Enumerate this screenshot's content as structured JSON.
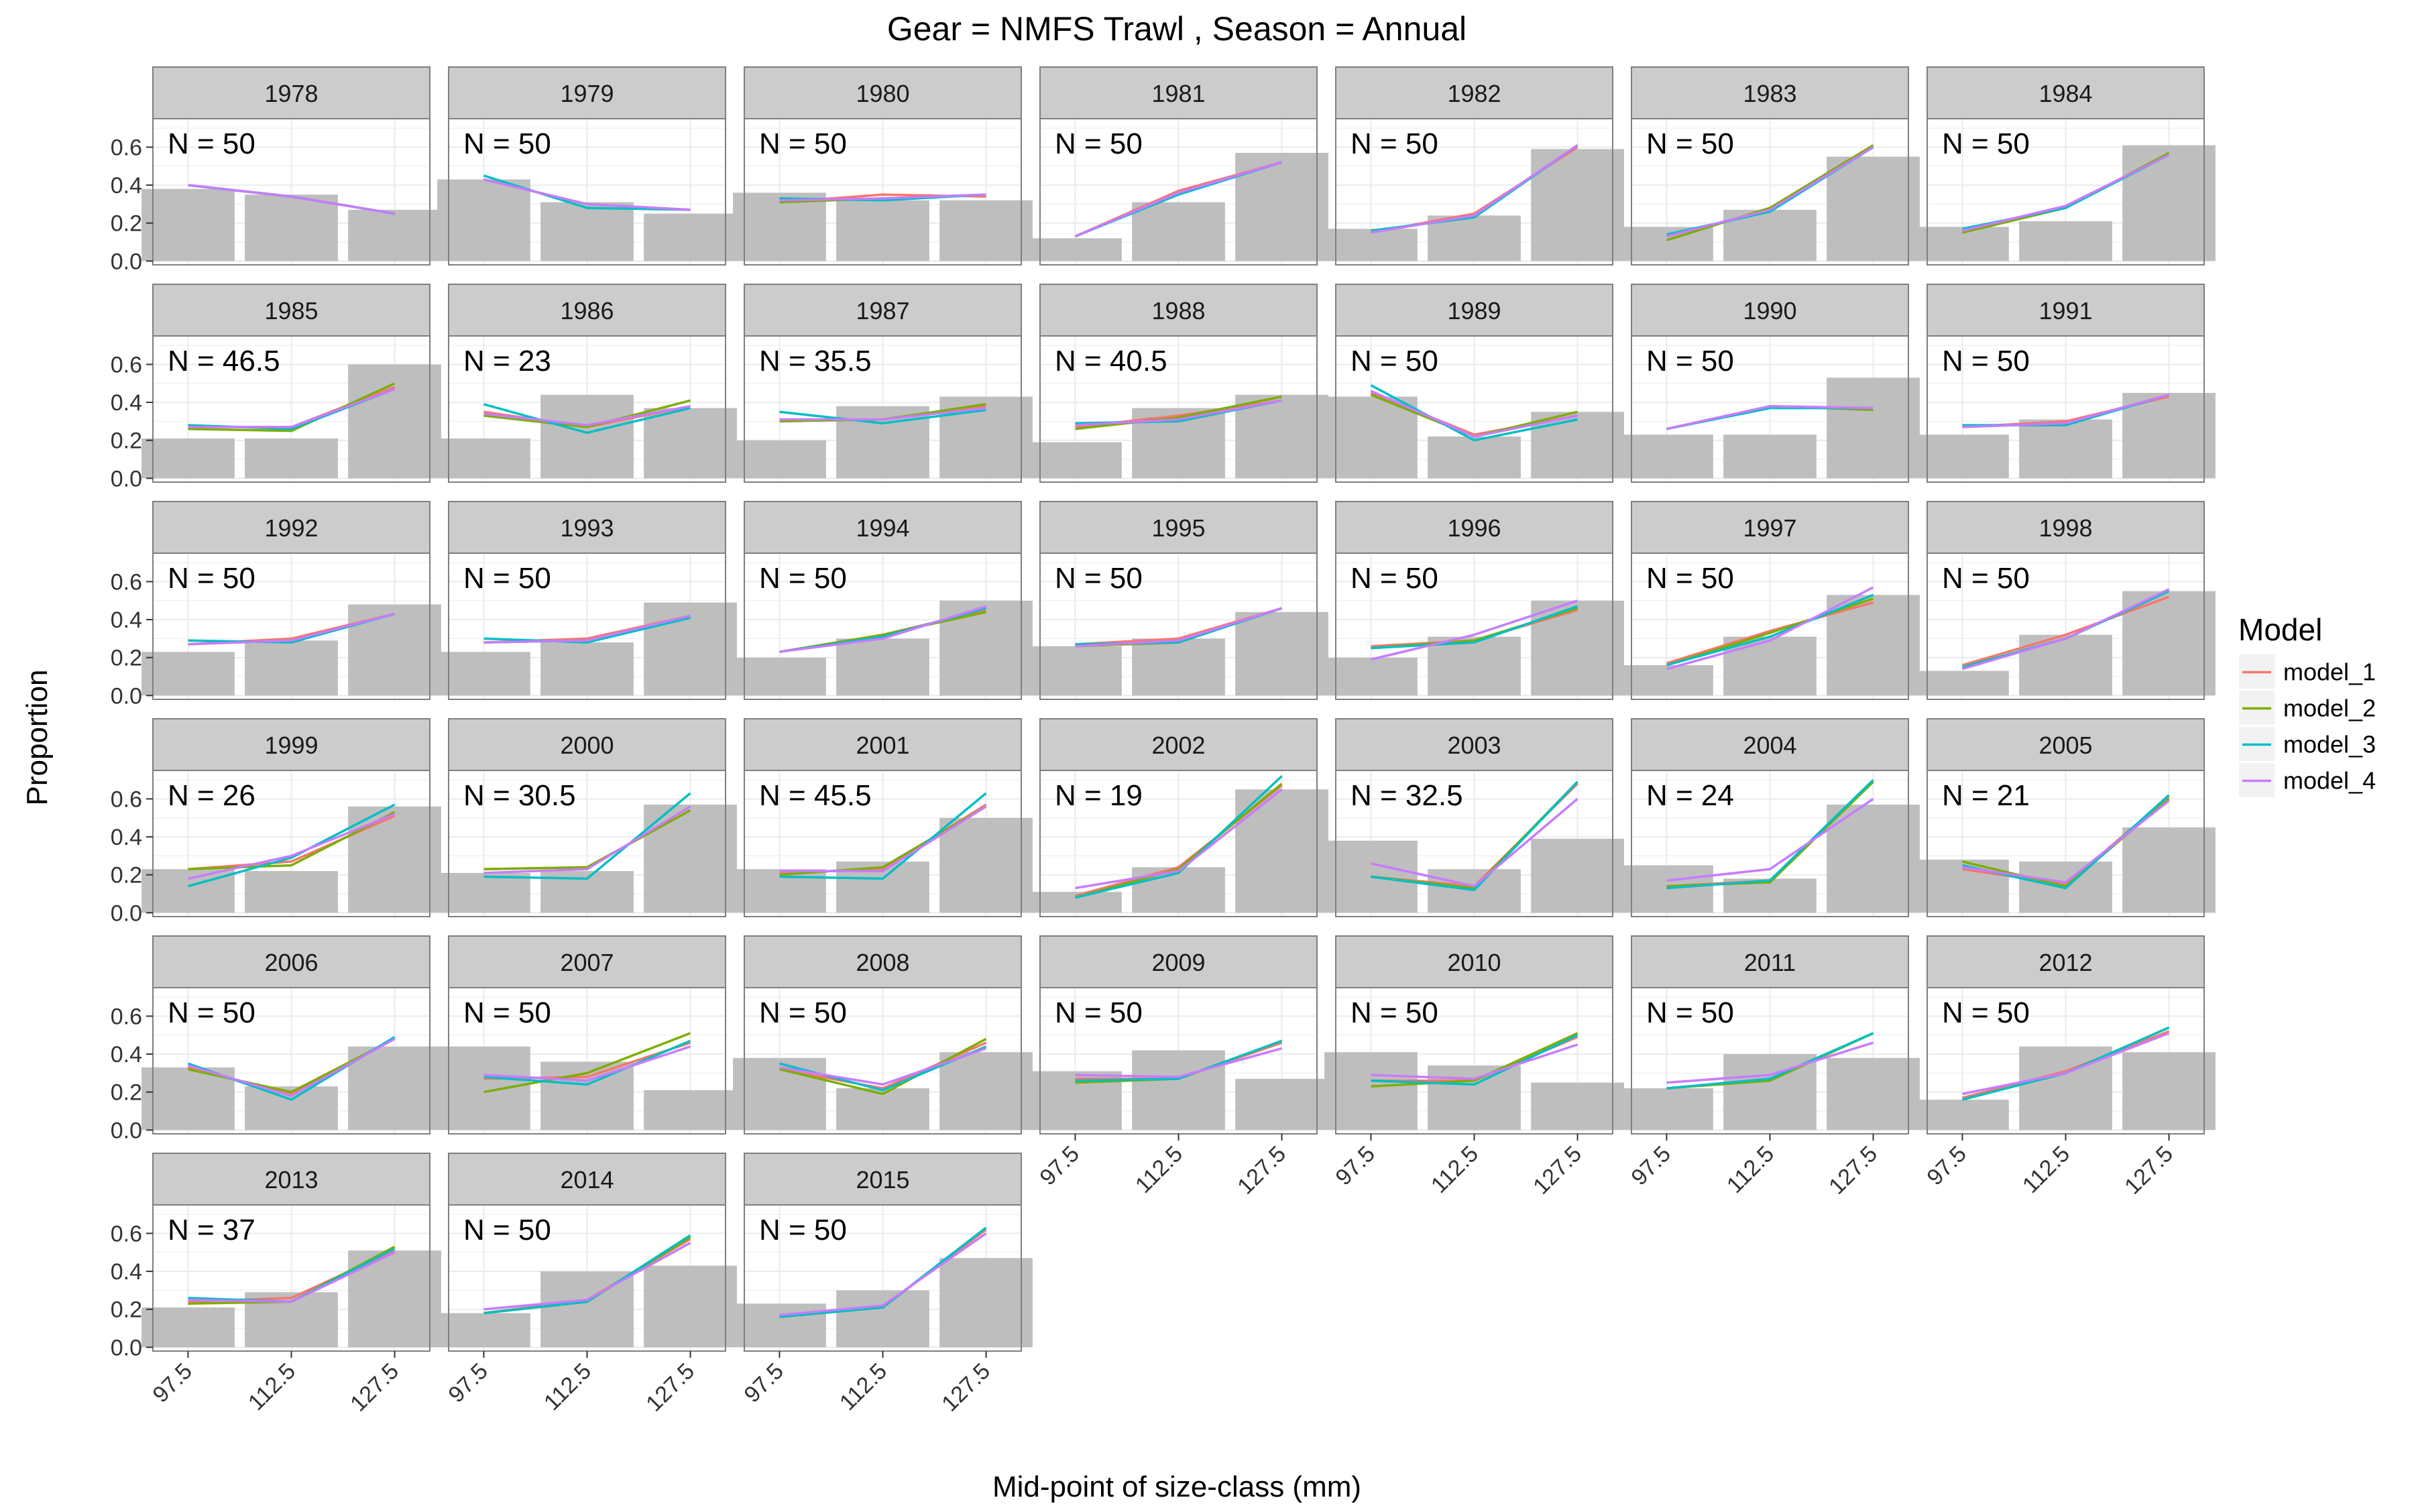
{
  "chart_data": {
    "type": "line",
    "title": "Gear = NMFS Trawl , Season = Annual",
    "xlabel": "Mid-point of size-class (mm)",
    "ylabel": "Proportion",
    "categories": [
      "97.5",
      "112.5",
      "127.5"
    ],
    "ylim": [
      -0.02,
      0.75
    ],
    "yticks": [
      "0.0",
      "0.2",
      "0.4",
      "0.6"
    ],
    "legend": {
      "title": "Model",
      "position": "right",
      "entries": [
        "model_1",
        "model_2",
        "model_3",
        "model_4"
      ]
    },
    "colors": {
      "model_1": "#F8766D",
      "model_2": "#7CAE00",
      "model_3": "#00BFC4",
      "model_4": "#C77CFF",
      "bar": "#BEBEBE",
      "strip": "#CCCCCC",
      "panel_border": "#7F7F7F",
      "grid": "#EBEBEB"
    },
    "facet_variable": "year",
    "panels": [
      {
        "year": "1978",
        "label": "N = 50",
        "observed": [
          0.38,
          0.35,
          0.27
        ],
        "series": [
          [
            0.4,
            0.34,
            0.25
          ],
          [
            0.4,
            0.34,
            0.25
          ],
          [
            0.4,
            0.34,
            0.25
          ],
          [
            0.4,
            0.34,
            0.25
          ]
        ]
      },
      {
        "year": "1979",
        "label": "N = 50",
        "observed": [
          0.43,
          0.31,
          0.25
        ],
        "series": [
          [
            0.43,
            0.3,
            0.27
          ],
          [
            0.43,
            0.3,
            0.27
          ],
          [
            0.45,
            0.28,
            0.27
          ],
          [
            0.43,
            0.3,
            0.27
          ]
        ]
      },
      {
        "year": "1980",
        "label": "N = 50",
        "observed": [
          0.36,
          0.32,
          0.32
        ],
        "series": [
          [
            0.31,
            0.35,
            0.34
          ],
          [
            0.31,
            0.33,
            0.35
          ],
          [
            0.33,
            0.32,
            0.35
          ],
          [
            0.32,
            0.33,
            0.35
          ]
        ]
      },
      {
        "year": "1981",
        "label": "N = 50",
        "observed": [
          0.12,
          0.31,
          0.57
        ],
        "series": [
          [
            0.13,
            0.37,
            0.52
          ],
          [
            0.13,
            0.36,
            0.52
          ],
          [
            0.13,
            0.35,
            0.52
          ],
          [
            0.13,
            0.36,
            0.52
          ]
        ]
      },
      {
        "year": "1982",
        "label": "N = 50",
        "observed": [
          0.17,
          0.24,
          0.59
        ],
        "series": [
          [
            0.15,
            0.25,
            0.6
          ],
          [
            0.15,
            0.24,
            0.61
          ],
          [
            0.16,
            0.23,
            0.61
          ],
          [
            0.15,
            0.24,
            0.61
          ]
        ]
      },
      {
        "year": "1983",
        "label": "N = 50",
        "observed": [
          0.18,
          0.27,
          0.55
        ],
        "series": [
          [
            0.13,
            0.27,
            0.6
          ],
          [
            0.11,
            0.28,
            0.61
          ],
          [
            0.14,
            0.26,
            0.6
          ],
          [
            0.13,
            0.27,
            0.6
          ]
        ]
      },
      {
        "year": "1984",
        "label": "N = 50",
        "observed": [
          0.18,
          0.21,
          0.61
        ],
        "series": [
          [
            0.16,
            0.29,
            0.56
          ],
          [
            0.15,
            0.28,
            0.57
          ],
          [
            0.17,
            0.28,
            0.56
          ],
          [
            0.16,
            0.29,
            0.56
          ]
        ]
      },
      {
        "year": "1985",
        "label": "N = 46.5",
        "observed": [
          0.21,
          0.21,
          0.6
        ],
        "series": [
          [
            0.27,
            0.27,
            0.48
          ],
          [
            0.26,
            0.25,
            0.5
          ],
          [
            0.28,
            0.26,
            0.47
          ],
          [
            0.27,
            0.27,
            0.47
          ]
        ]
      },
      {
        "year": "1986",
        "label": "N = 23",
        "observed": [
          0.21,
          0.44,
          0.37
        ],
        "series": [
          [
            0.35,
            0.27,
            0.38
          ],
          [
            0.33,
            0.27,
            0.41
          ],
          [
            0.39,
            0.24,
            0.37
          ],
          [
            0.34,
            0.28,
            0.38
          ]
        ]
      },
      {
        "year": "1987",
        "label": "N = 35.5",
        "observed": [
          0.2,
          0.38,
          0.43
        ],
        "series": [
          [
            0.31,
            0.31,
            0.38
          ],
          [
            0.3,
            0.31,
            0.39
          ],
          [
            0.35,
            0.29,
            0.36
          ],
          [
            0.31,
            0.31,
            0.37
          ]
        ]
      },
      {
        "year": "1988",
        "label": "N = 40.5",
        "observed": [
          0.19,
          0.37,
          0.44
        ],
        "series": [
          [
            0.27,
            0.33,
            0.41
          ],
          [
            0.26,
            0.32,
            0.43
          ],
          [
            0.29,
            0.3,
            0.41
          ],
          [
            0.28,
            0.31,
            0.41
          ]
        ]
      },
      {
        "year": "1989",
        "label": "N = 50",
        "observed": [
          0.43,
          0.22,
          0.35
        ],
        "series": [
          [
            0.45,
            0.23,
            0.33
          ],
          [
            0.44,
            0.22,
            0.35
          ],
          [
            0.49,
            0.2,
            0.31
          ],
          [
            0.46,
            0.22,
            0.33
          ]
        ]
      },
      {
        "year": "1990",
        "label": "N = 50",
        "observed": [
          0.23,
          0.23,
          0.53
        ],
        "series": [
          [
            0.26,
            0.38,
            0.37
          ],
          [
            0.26,
            0.38,
            0.36
          ],
          [
            0.26,
            0.37,
            0.37
          ],
          [
            0.26,
            0.38,
            0.37
          ]
        ]
      },
      {
        "year": "1991",
        "label": "N = 50",
        "observed": [
          0.23,
          0.31,
          0.45
        ],
        "series": [
          [
            0.27,
            0.3,
            0.43
          ],
          [
            0.27,
            0.29,
            0.44
          ],
          [
            0.28,
            0.28,
            0.44
          ],
          [
            0.27,
            0.29,
            0.44
          ]
        ]
      },
      {
        "year": "1992",
        "label": "N = 50",
        "observed": [
          0.23,
          0.29,
          0.48
        ],
        "series": [
          [
            0.27,
            0.3,
            0.43
          ],
          [
            0.27,
            0.29,
            0.43
          ],
          [
            0.29,
            0.28,
            0.43
          ],
          [
            0.27,
            0.29,
            0.43
          ]
        ]
      },
      {
        "year": "1993",
        "label": "N = 50",
        "observed": [
          0.23,
          0.28,
          0.49
        ],
        "series": [
          [
            0.28,
            0.3,
            0.42
          ],
          [
            0.28,
            0.29,
            0.42
          ],
          [
            0.3,
            0.28,
            0.41
          ],
          [
            0.28,
            0.29,
            0.42
          ]
        ]
      },
      {
        "year": "1994",
        "label": "N = 50",
        "observed": [
          0.2,
          0.3,
          0.5
        ],
        "series": [
          [
            0.23,
            0.32,
            0.45
          ],
          [
            0.23,
            0.32,
            0.44
          ],
          [
            0.23,
            0.31,
            0.46
          ],
          [
            0.23,
            0.3,
            0.47
          ]
        ]
      },
      {
        "year": "1995",
        "label": "N = 50",
        "observed": [
          0.26,
          0.3,
          0.44
        ],
        "series": [
          [
            0.27,
            0.3,
            0.46
          ],
          [
            0.26,
            0.28,
            0.46
          ],
          [
            0.27,
            0.28,
            0.46
          ],
          [
            0.26,
            0.29,
            0.46
          ]
        ]
      },
      {
        "year": "1996",
        "label": "N = 50",
        "observed": [
          0.2,
          0.31,
          0.5
        ],
        "series": [
          [
            0.26,
            0.29,
            0.45
          ],
          [
            0.25,
            0.29,
            0.46
          ],
          [
            0.25,
            0.28,
            0.47
          ],
          [
            0.19,
            0.32,
            0.5
          ]
        ]
      },
      {
        "year": "1997",
        "label": "N = 50",
        "observed": [
          0.16,
          0.31,
          0.53
        ],
        "series": [
          [
            0.17,
            0.34,
            0.49
          ],
          [
            0.16,
            0.33,
            0.51
          ],
          [
            0.16,
            0.31,
            0.53
          ],
          [
            0.14,
            0.29,
            0.57
          ]
        ]
      },
      {
        "year": "1998",
        "label": "N = 50",
        "observed": [
          0.13,
          0.32,
          0.55
        ],
        "series": [
          [
            0.16,
            0.32,
            0.52
          ],
          [
            0.15,
            0.3,
            0.55
          ],
          [
            0.15,
            0.3,
            0.55
          ],
          [
            0.14,
            0.3,
            0.56
          ]
        ]
      },
      {
        "year": "1999",
        "label": "N = 26",
        "observed": [
          0.23,
          0.22,
          0.56
        ],
        "series": [
          [
            0.23,
            0.27,
            0.51
          ],
          [
            0.23,
            0.25,
            0.53
          ],
          [
            0.14,
            0.29,
            0.57
          ],
          [
            0.18,
            0.3,
            0.52
          ]
        ]
      },
      {
        "year": "2000",
        "label": "N = 30.5",
        "observed": [
          0.21,
          0.22,
          0.57
        ],
        "series": [
          [
            0.23,
            0.24,
            0.54
          ],
          [
            0.23,
            0.24,
            0.54
          ],
          [
            0.19,
            0.18,
            0.63
          ],
          [
            0.21,
            0.23,
            0.56
          ]
        ]
      },
      {
        "year": "2001",
        "label": "N = 45.5",
        "observed": [
          0.23,
          0.27,
          0.5
        ],
        "series": [
          [
            0.21,
            0.23,
            0.57
          ],
          [
            0.2,
            0.24,
            0.56
          ],
          [
            0.19,
            0.18,
            0.63
          ],
          [
            0.22,
            0.22,
            0.56
          ]
        ]
      },
      {
        "year": "2002",
        "label": "N = 19",
        "observed": [
          0.11,
          0.24,
          0.65
        ],
        "series": [
          [
            0.09,
            0.24,
            0.67
          ],
          [
            0.08,
            0.23,
            0.68
          ],
          [
            0.08,
            0.21,
            0.72
          ],
          [
            0.13,
            0.22,
            0.65
          ]
        ]
      },
      {
        "year": "2003",
        "label": "N = 32.5",
        "observed": [
          0.38,
          0.23,
          0.39
        ],
        "series": [
          [
            0.19,
            0.14,
            0.68
          ],
          [
            0.19,
            0.13,
            0.69
          ],
          [
            0.19,
            0.12,
            0.69
          ],
          [
            0.26,
            0.14,
            0.6
          ]
        ]
      },
      {
        "year": "2004",
        "label": "N = 24",
        "observed": [
          0.25,
          0.18,
          0.57
        ],
        "series": [
          [
            0.14,
            0.17,
            0.69
          ],
          [
            0.14,
            0.16,
            0.69
          ],
          [
            0.13,
            0.17,
            0.7
          ],
          [
            0.17,
            0.23,
            0.6
          ]
        ]
      },
      {
        "year": "2005",
        "label": "N = 21",
        "observed": [
          0.28,
          0.27,
          0.45
        ],
        "series": [
          [
            0.23,
            0.15,
            0.61
          ],
          [
            0.27,
            0.14,
            0.6
          ],
          [
            0.25,
            0.13,
            0.62
          ],
          [
            0.24,
            0.16,
            0.59
          ]
        ]
      },
      {
        "year": "2006",
        "label": "N = 50",
        "observed": [
          0.33,
          0.23,
          0.44
        ],
        "series": [
          [
            0.33,
            0.19,
            0.48
          ],
          [
            0.32,
            0.2,
            0.48
          ],
          [
            0.35,
            0.16,
            0.49
          ],
          [
            0.34,
            0.18,
            0.48
          ]
        ]
      },
      {
        "year": "2007",
        "label": "N = 50",
        "observed": [
          0.44,
          0.36,
          0.21
        ],
        "series": [
          [
            0.27,
            0.28,
            0.46
          ],
          [
            0.2,
            0.3,
            0.51
          ],
          [
            0.28,
            0.24,
            0.47
          ],
          [
            0.29,
            0.26,
            0.44
          ]
        ]
      },
      {
        "year": "2008",
        "label": "N = 50",
        "observed": [
          0.38,
          0.22,
          0.41
        ],
        "series": [
          [
            0.32,
            0.22,
            0.46
          ],
          [
            0.32,
            0.19,
            0.48
          ],
          [
            0.35,
            0.21,
            0.44
          ],
          [
            0.33,
            0.24,
            0.43
          ]
        ]
      },
      {
        "year": "2009",
        "label": "N = 50",
        "observed": [
          0.31,
          0.42,
          0.27
        ],
        "series": [
          [
            0.27,
            0.27,
            0.46
          ],
          [
            0.25,
            0.27,
            0.47
          ],
          [
            0.26,
            0.27,
            0.47
          ],
          [
            0.29,
            0.28,
            0.43
          ]
        ]
      },
      {
        "year": "2010",
        "label": "N = 50",
        "observed": [
          0.41,
          0.34,
          0.25
        ],
        "series": [
          [
            0.26,
            0.26,
            0.49
          ],
          [
            0.23,
            0.26,
            0.51
          ],
          [
            0.26,
            0.24,
            0.5
          ],
          [
            0.29,
            0.27,
            0.45
          ]
        ]
      },
      {
        "year": "2011",
        "label": "N = 50",
        "observed": [
          0.22,
          0.4,
          0.38
        ],
        "series": [
          [
            0.22,
            0.27,
            0.51
          ],
          [
            0.22,
            0.26,
            0.51
          ],
          [
            0.22,
            0.27,
            0.51
          ],
          [
            0.25,
            0.29,
            0.46
          ]
        ]
      },
      {
        "year": "2012",
        "label": "N = 50",
        "observed": [
          0.16,
          0.44,
          0.41
        ],
        "series": [
          [
            0.17,
            0.31,
            0.52
          ],
          [
            0.16,
            0.3,
            0.54
          ],
          [
            0.16,
            0.3,
            0.54
          ],
          [
            0.19,
            0.3,
            0.51
          ]
        ]
      },
      {
        "year": "2013",
        "label": "N = 37",
        "observed": [
          0.21,
          0.29,
          0.51
        ],
        "series": [
          [
            0.24,
            0.26,
            0.51
          ],
          [
            0.23,
            0.24,
            0.53
          ],
          [
            0.26,
            0.24,
            0.52
          ],
          [
            0.25,
            0.24,
            0.5
          ]
        ]
      },
      {
        "year": "2014",
        "label": "N = 50",
        "observed": [
          0.18,
          0.4,
          0.43
        ],
        "series": [
          [
            0.18,
            0.25,
            0.57
          ],
          [
            0.18,
            0.24,
            0.58
          ],
          [
            0.18,
            0.24,
            0.59
          ],
          [
            0.2,
            0.25,
            0.55
          ]
        ]
      },
      {
        "year": "2015",
        "label": "N = 50",
        "observed": [
          0.23,
          0.3,
          0.47
        ],
        "series": [
          [
            0.16,
            0.21,
            0.62
          ],
          [
            0.16,
            0.21,
            0.63
          ],
          [
            0.16,
            0.21,
            0.63
          ],
          [
            0.17,
            0.22,
            0.6
          ]
        ]
      }
    ]
  }
}
